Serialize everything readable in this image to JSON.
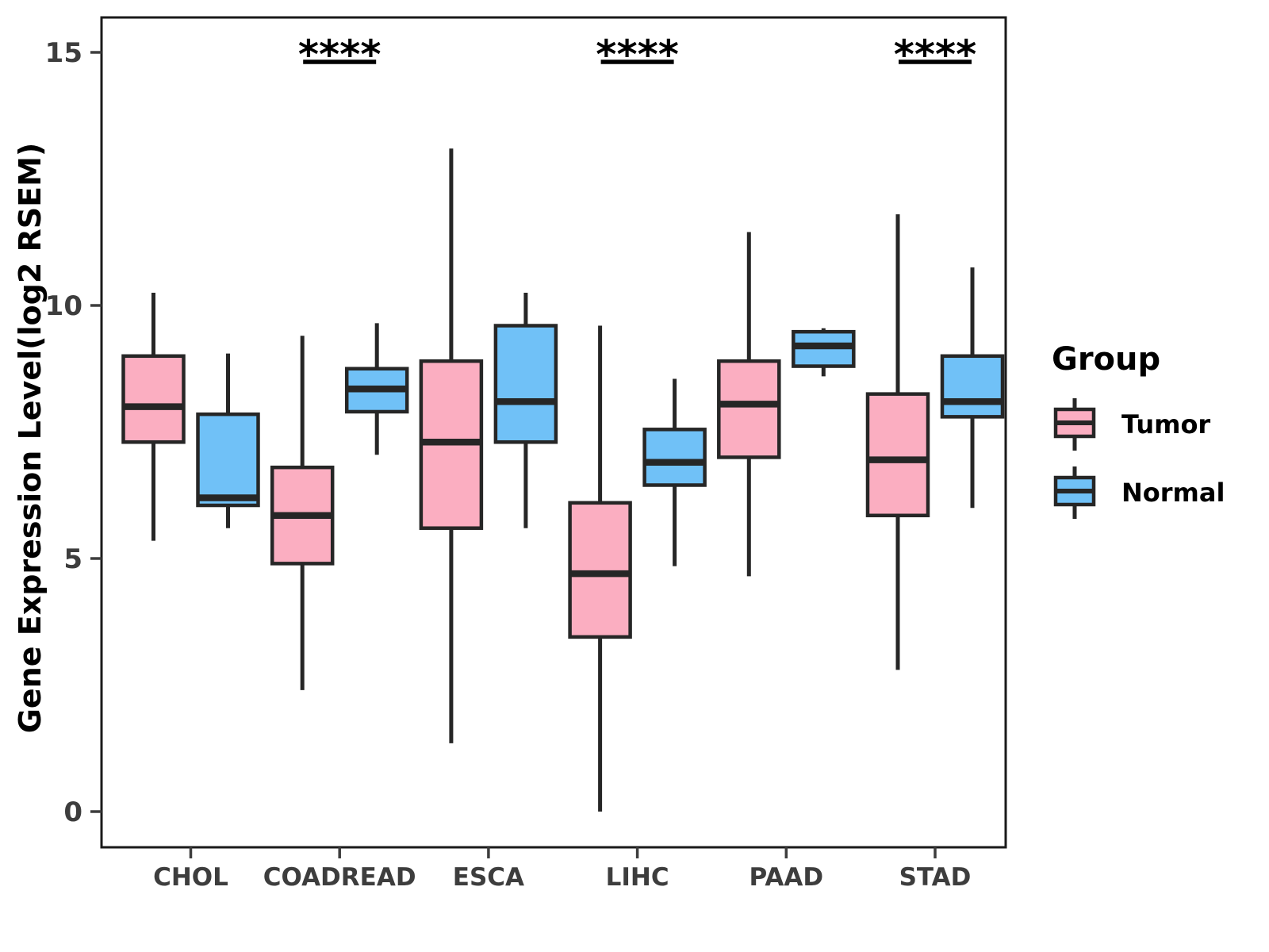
{
  "figure": {
    "background": "#FFFFFF",
    "panel_border_color": "#1A1A1A",
    "box_stroke_color": "#262626",
    "text_color": "#3D3D3D"
  },
  "legend": {
    "title": "Group"
  },
  "chart_data": {
    "type": "boxplot",
    "title": "",
    "xlabel": "",
    "ylabel": "Gene Expression Level(log2 RSEM)",
    "categories": [
      "CHOL",
      "COADREAD",
      "ESCA",
      "LIHC",
      "PAAD",
      "STAD"
    ],
    "yticks": [
      0,
      5,
      10,
      15
    ],
    "ylim": [
      -0.8,
      15.8
    ],
    "grid": false,
    "legend_position": "right",
    "series": [
      {
        "name": "Tumor",
        "color": "#FBAEC1",
        "boxes": [
          {
            "min": 5.35,
            "q1": 7.3,
            "median": 8.0,
            "q3": 9.0,
            "max": 10.25
          },
          {
            "min": 2.4,
            "q1": 4.9,
            "median": 5.85,
            "q3": 6.8,
            "max": 9.4
          },
          {
            "min": 1.35,
            "q1": 5.6,
            "median": 7.3,
            "q3": 8.9,
            "max": 13.1
          },
          {
            "min": 0.0,
            "q1": 3.45,
            "median": 4.7,
            "q3": 6.1,
            "max": 9.6
          },
          {
            "min": 4.65,
            "q1": 7.0,
            "median": 8.05,
            "q3": 8.9,
            "max": 11.45
          },
          {
            "min": 2.8,
            "q1": 5.85,
            "median": 6.95,
            "q3": 8.25,
            "max": 11.8
          }
        ]
      },
      {
        "name": "Normal",
        "color": "#70C1F7",
        "boxes": [
          {
            "min": 5.6,
            "q1": 6.05,
            "median": 6.2,
            "q3": 7.85,
            "max": 9.05
          },
          {
            "min": 7.05,
            "q1": 7.9,
            "median": 8.35,
            "q3": 8.75,
            "max": 9.65
          },
          {
            "min": 5.6,
            "q1": 7.3,
            "median": 8.1,
            "q3": 9.6,
            "max": 10.25
          },
          {
            "min": 4.85,
            "q1": 6.45,
            "median": 6.9,
            "q3": 7.55,
            "max": 8.55
          },
          {
            "min": 8.6,
            "q1": 8.8,
            "median": 9.2,
            "q3": 9.48,
            "max": 9.55
          },
          {
            "min": 6.0,
            "q1": 7.8,
            "median": 8.1,
            "q3": 9.0,
            "max": 10.75
          }
        ]
      }
    ],
    "significance": [
      {
        "category": "COADREAD",
        "label": "****"
      },
      {
        "category": "LIHC",
        "label": "****"
      },
      {
        "category": "STAD",
        "label": "****"
      }
    ]
  }
}
